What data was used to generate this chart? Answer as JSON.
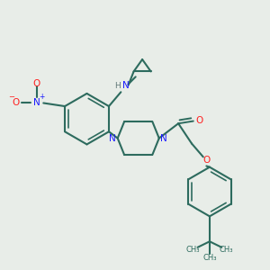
{
  "bg_color": "#e8ede8",
  "bond_color": "#2d6b5e",
  "N_color": "#1a1aff",
  "O_color": "#ff2020",
  "H_color": "#607878",
  "figsize": [
    3.0,
    3.0
  ],
  "dpi": 100,
  "xlim": [
    0,
    10
  ],
  "ylim": [
    0,
    10
  ]
}
